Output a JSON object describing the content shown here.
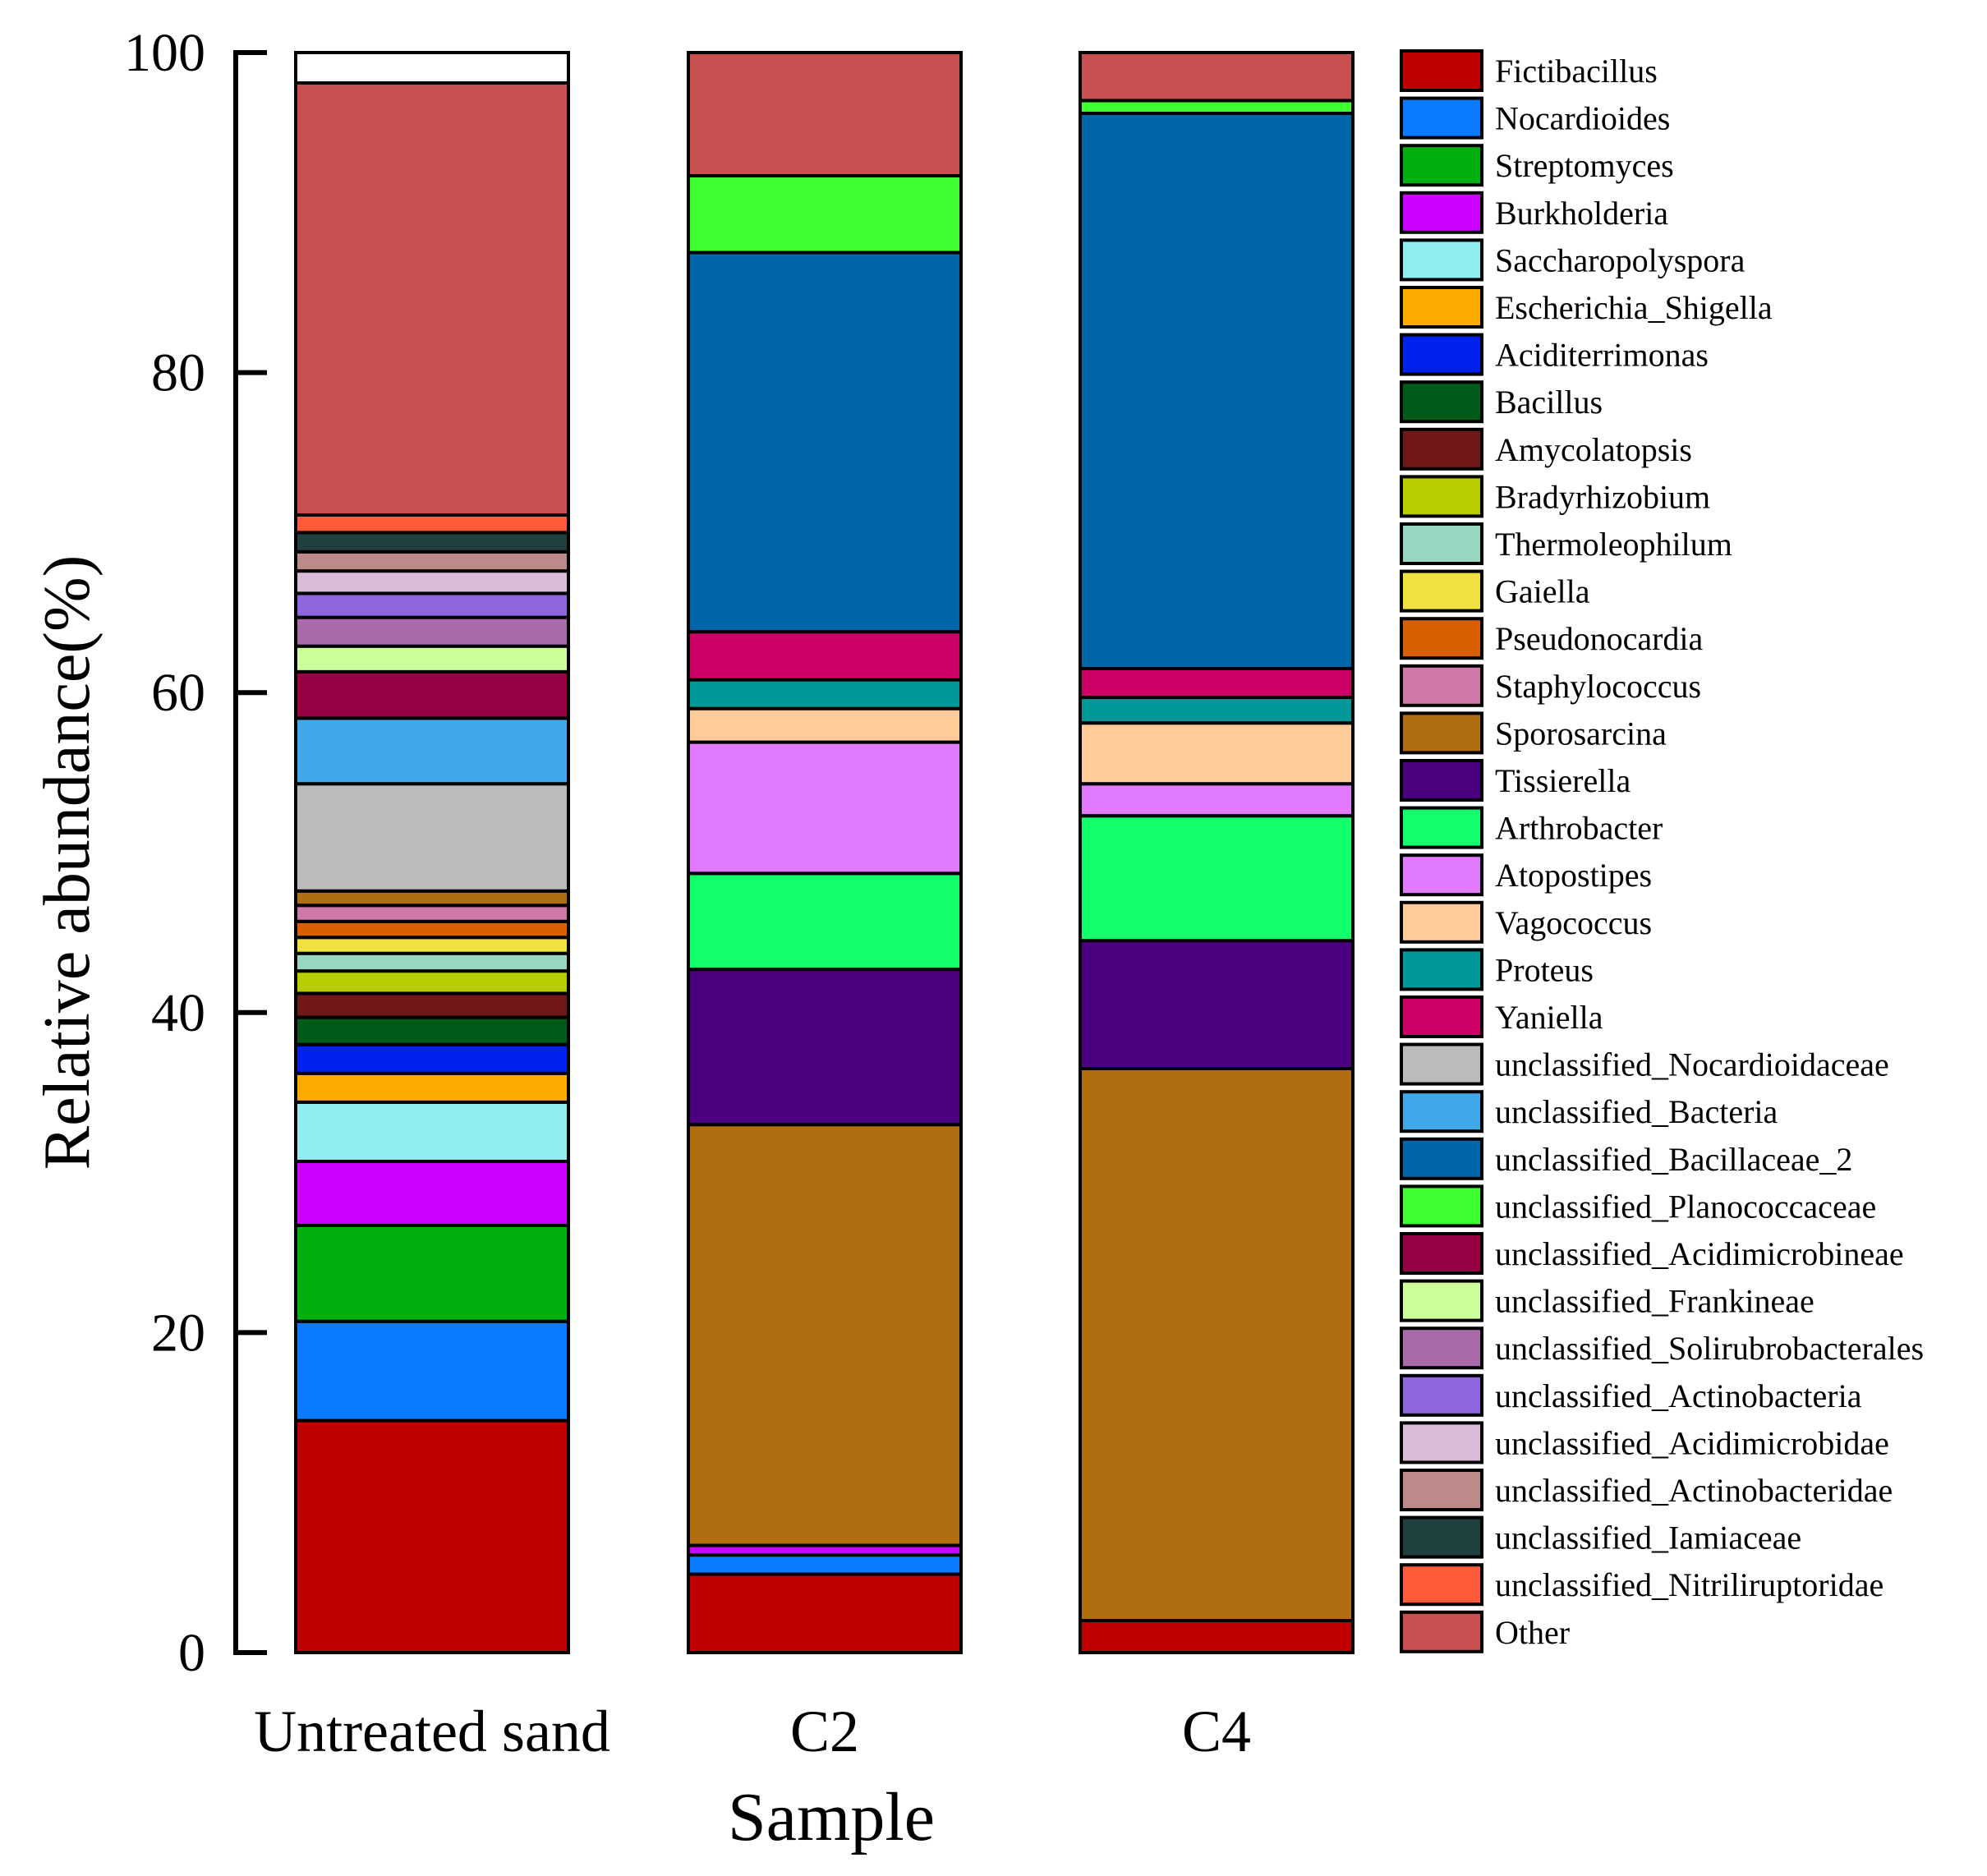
{
  "chart_data": {
    "type": "bar",
    "stacked": true,
    "xlabel": "Sample",
    "ylabel": "Relative abundance(%)",
    "ylim": [
      0,
      100
    ],
    "yticks": [
      0,
      20,
      40,
      60,
      80,
      100
    ],
    "legend_position": "right",
    "categories": [
      "Untreated sand",
      "C2",
      "C4"
    ],
    "series": [
      {
        "name": "Fictibacillus",
        "color": "#C00000",
        "values": [
          14.5,
          4.9,
          2.0
        ]
      },
      {
        "name": "Nocardioides",
        "color": "#0A7BFF",
        "values": [
          6.2,
          1.2,
          0.0
        ]
      },
      {
        "name": "Streptomyces",
        "color": "#00B010",
        "values": [
          6.0,
          0.0,
          0.0
        ]
      },
      {
        "name": "Burkholderia",
        "color": "#CC00FF",
        "values": [
          4.0,
          0.6,
          0.0
        ]
      },
      {
        "name": "Saccharopolyspora",
        "color": "#90EEF2",
        "values": [
          3.7,
          0.0,
          0.0
        ]
      },
      {
        "name": "Escherichia_Shigella",
        "color": "#FFAA00",
        "values": [
          1.8,
          0.0,
          0.0
        ]
      },
      {
        "name": "Aciditerrimonas",
        "color": "#0022EE",
        "values": [
          1.8,
          0.0,
          0.0
        ]
      },
      {
        "name": "Bacillus",
        "color": "#005A18",
        "values": [
          1.7,
          0.0,
          0.0
        ]
      },
      {
        "name": "Amycolatopsis",
        "color": "#701818",
        "values": [
          1.5,
          0.0,
          0.0
        ]
      },
      {
        "name": "Bradyrhizobium",
        "color": "#B8CC00",
        "values": [
          1.4,
          0.0,
          0.0
        ]
      },
      {
        "name": "Thermoleophilum",
        "color": "#98D6C4",
        "values": [
          1.1,
          0.0,
          0.0
        ]
      },
      {
        "name": "Gaiella",
        "color": "#F0E040",
        "values": [
          1.0,
          0.0,
          0.0
        ]
      },
      {
        "name": "Pseudonocardia",
        "color": "#D86000",
        "values": [
          1.0,
          0.0,
          0.0
        ]
      },
      {
        "name": "Staphylococcus",
        "color": "#D078A8",
        "values": [
          1.0,
          0.0,
          0.0
        ]
      },
      {
        "name": "Sporosarcina",
        "color": "#B06E10",
        "values": [
          0.9,
          26.3,
          34.5
        ]
      },
      {
        "name": "Tissierella",
        "color": "#4B0082",
        "values": [
          0.0,
          9.7,
          8.0
        ]
      },
      {
        "name": "Arthrobacter",
        "color": "#10FF6A",
        "values": [
          0.0,
          6.0,
          7.8
        ]
      },
      {
        "name": "Atopostipes",
        "color": "#E27AFF",
        "values": [
          0.0,
          8.2,
          2.0
        ]
      },
      {
        "name": "Vagococcus",
        "color": "#FFCC99",
        "values": [
          0.0,
          2.1,
          3.8
        ]
      },
      {
        "name": "Proteus",
        "color": "#009999",
        "values": [
          0.0,
          1.8,
          1.6
        ]
      },
      {
        "name": "Yaniella",
        "color": "#CC0066",
        "values": [
          0.0,
          3.0,
          1.8
        ]
      },
      {
        "name": "unclassified_Nocardioidaceae",
        "color": "#BBBBBB",
        "values": [
          6.7,
          0.0,
          0.0
        ]
      },
      {
        "name": "unclassified_Bacteria",
        "color": "#40A8E8",
        "values": [
          4.1,
          0.0,
          0.0
        ]
      },
      {
        "name": "unclassified_Bacillaceae_2",
        "color": "#0066AA",
        "values": [
          0.0,
          23.7,
          34.7
        ]
      },
      {
        "name": "unclassified_Planococcaceae",
        "color": "#40FF30",
        "values": [
          0.0,
          4.8,
          0.8
        ]
      },
      {
        "name": "unclassified_Acidimicrobineae",
        "color": "#990044",
        "values": [
          2.9,
          0.0,
          0.0
        ]
      },
      {
        "name": "unclassified_Frankineae",
        "color": "#CCFF99",
        "values": [
          1.6,
          0.0,
          0.0
        ]
      },
      {
        "name": "unclassified_Solirubrobacterales",
        "color": "#A86AA8",
        "values": [
          1.8,
          0.0,
          0.0
        ]
      },
      {
        "name": "unclassified_Actinobacteria",
        "color": "#8E66DD",
        "values": [
          1.5,
          0.0,
          0.0
        ]
      },
      {
        "name": "unclassified_Acidimicrobidae",
        "color": "#D8BCD8",
        "values": [
          1.4,
          0.0,
          0.0
        ]
      },
      {
        "name": "unclassified_Actinobacteridae",
        "color": "#BC8A88",
        "values": [
          1.2,
          0.0,
          0.0
        ]
      },
      {
        "name": "unclassified_Iamiaceae",
        "color": "#204040",
        "values": [
          1.2,
          0.0,
          0.0
        ]
      },
      {
        "name": "unclassified_Nitriliruptoridae",
        "color": "#FF5A3A",
        "values": [
          1.1,
          0.0,
          0.0
        ]
      },
      {
        "name": "Other",
        "color": "#C85050",
        "values": [
          27.0,
          7.7,
          3.0
        ]
      }
    ]
  }
}
